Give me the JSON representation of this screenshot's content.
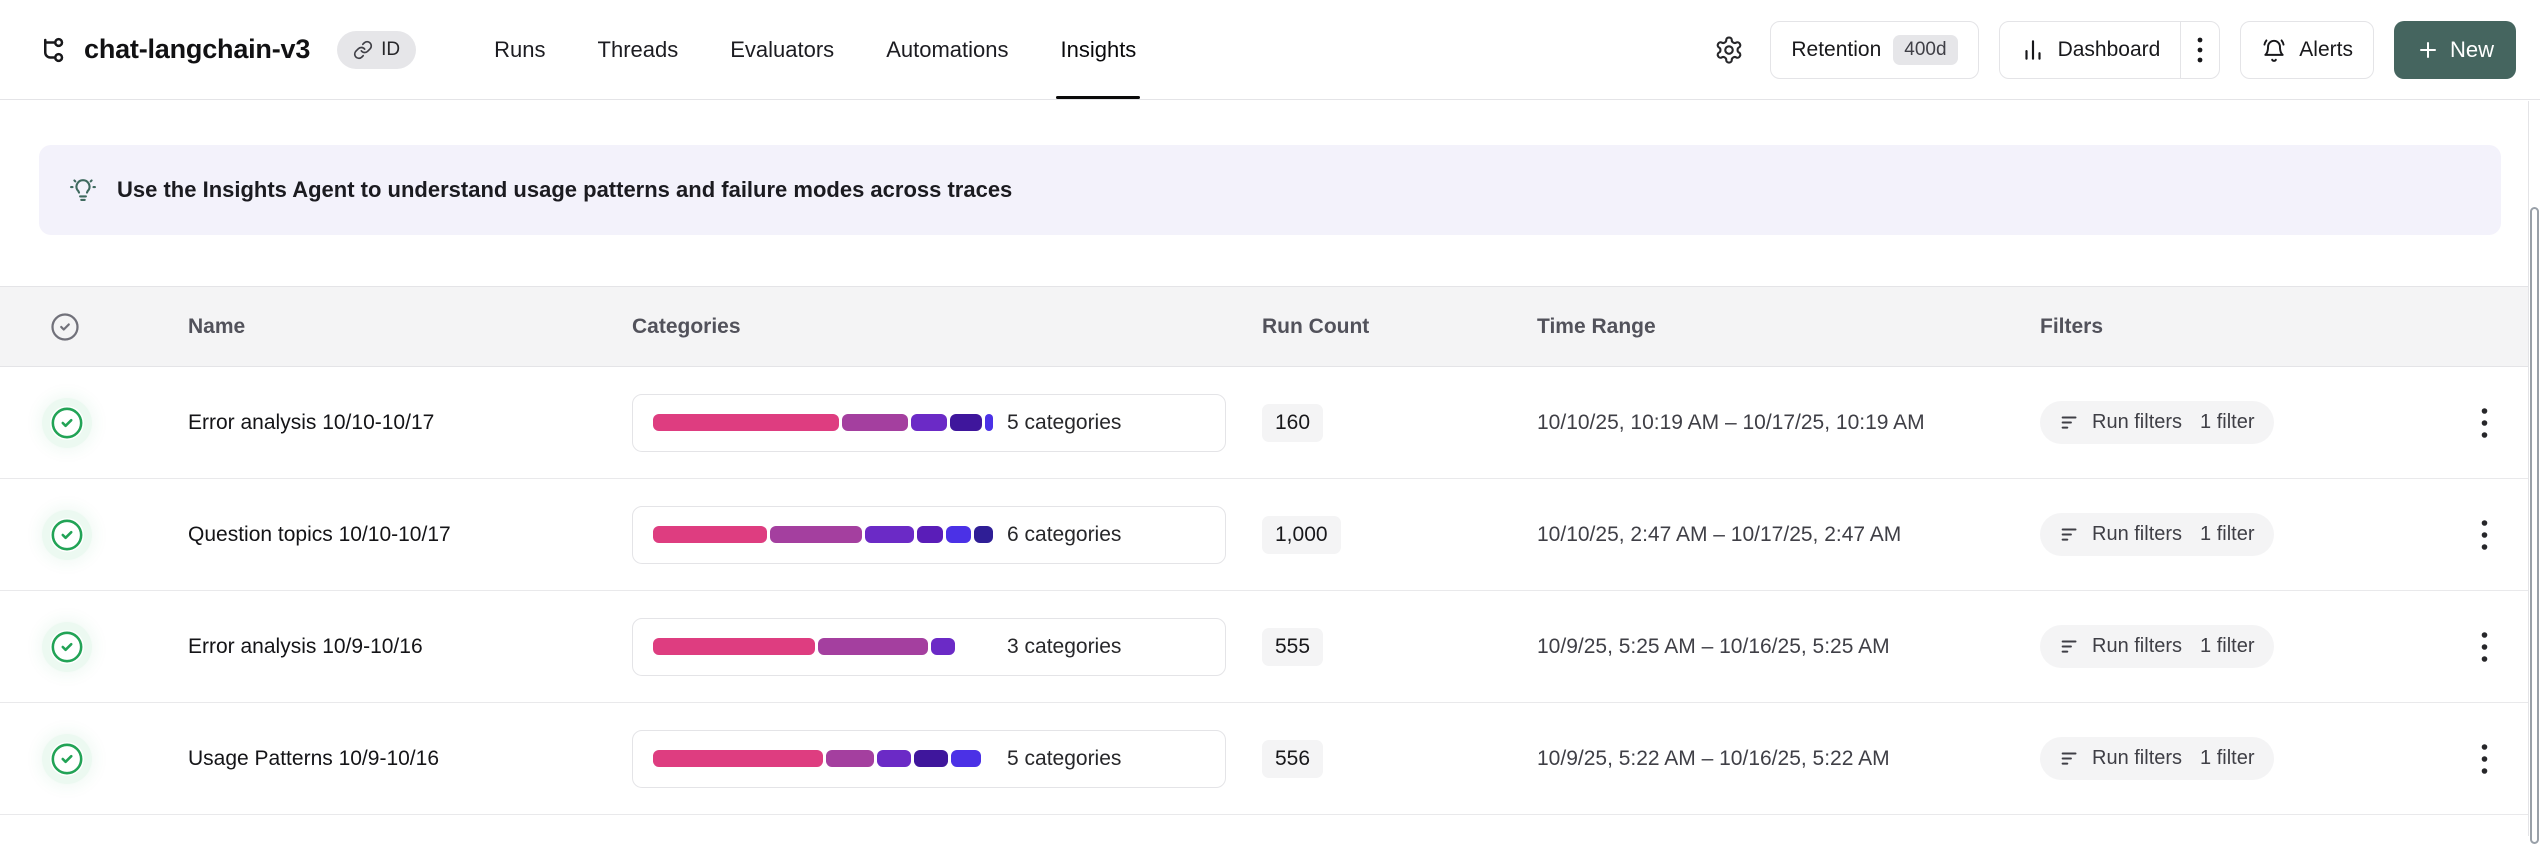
{
  "header": {
    "title": "chat-langchain-v3",
    "id_badge": "ID",
    "tabs": [
      {
        "label": "Runs",
        "active": false
      },
      {
        "label": "Threads",
        "active": false
      },
      {
        "label": "Evaluators",
        "active": false
      },
      {
        "label": "Automations",
        "active": false
      },
      {
        "label": "Insights",
        "active": true
      }
    ],
    "actions": {
      "retention_label": "Retention",
      "retention_value": "400d",
      "dashboard_label": "Dashboard",
      "alerts_label": "Alerts",
      "new_label": "New"
    }
  },
  "banner": {
    "text": "Use the Insights Agent to understand usage patterns and failure modes across traces"
  },
  "table": {
    "columns": {
      "name": "Name",
      "categories": "Categories",
      "run_count": "Run Count",
      "time_range": "Time Range",
      "filters": "Filters"
    },
    "rows": [
      {
        "name": "Error analysis 10/10-10/17",
        "categories_label": "5 categories",
        "segments": [
          {
            "color": "#de3d80",
            "pct": 56
          },
          {
            "color": "#a43f9f",
            "pct": 20
          },
          {
            "color": "#6b2ac6",
            "pct": 11
          },
          {
            "color": "#3f169c",
            "pct": 9.5
          },
          {
            "color": "#4b31e6",
            "pct": 2.5
          }
        ],
        "run_count": "160",
        "time_range": "10/10/25, 10:19 AM – 10/17/25, 10:19 AM",
        "filters_label": "Run filters",
        "filters_count": "1 filter"
      },
      {
        "name": "Question topics 10/10-10/17",
        "categories_label": "6 categories",
        "segments": [
          {
            "color": "#de3d80",
            "pct": 35
          },
          {
            "color": "#a43f9f",
            "pct": 28.5
          },
          {
            "color": "#6b2ac6",
            "pct": 15
          },
          {
            "color": "#5a1db8",
            "pct": 8
          },
          {
            "color": "#4b31e6",
            "pct": 7.5
          },
          {
            "color": "#2f1e96",
            "pct": 6
          }
        ],
        "run_count": "1,000",
        "time_range": "10/10/25, 2:47 AM – 10/17/25, 2:47 AM",
        "filters_label": "Run filters",
        "filters_count": "1 filter"
      },
      {
        "name": "Error analysis 10/9-10/16",
        "categories_label": "3 categories",
        "segments": [
          {
            "color": "#de3d80",
            "pct": 47.5
          },
          {
            "color": "#a43f9f",
            "pct": 32.5
          },
          {
            "color": "#6b2ac6",
            "pct": 7
          }
        ],
        "run_count": "555",
        "time_range": "10/9/25, 5:25 AM – 10/16/25, 5:25 AM",
        "filters_label": "Run filters",
        "filters_count": "1 filter"
      },
      {
        "name": "Usage Patterns 10/9-10/16",
        "categories_label": "5 categories",
        "segments": [
          {
            "color": "#de3d80",
            "pct": 50
          },
          {
            "color": "#a43f9f",
            "pct": 14
          },
          {
            "color": "#6b2ac6",
            "pct": 10
          },
          {
            "color": "#3f169c",
            "pct": 10
          },
          {
            "color": "#4b31e6",
            "pct": 9
          }
        ],
        "run_count": "556",
        "time_range": "10/9/25, 5:22 AM – 10/16/25, 5:22 AM",
        "filters_label": "Run filters",
        "filters_count": "1 filter"
      }
    ]
  },
  "colors": {
    "accent_teal": "#45655f",
    "banner_bg": "#f3f2fb",
    "check_green": "#22a356",
    "border": "#e4e4e7",
    "chip_bg": "#f4f4f5"
  }
}
